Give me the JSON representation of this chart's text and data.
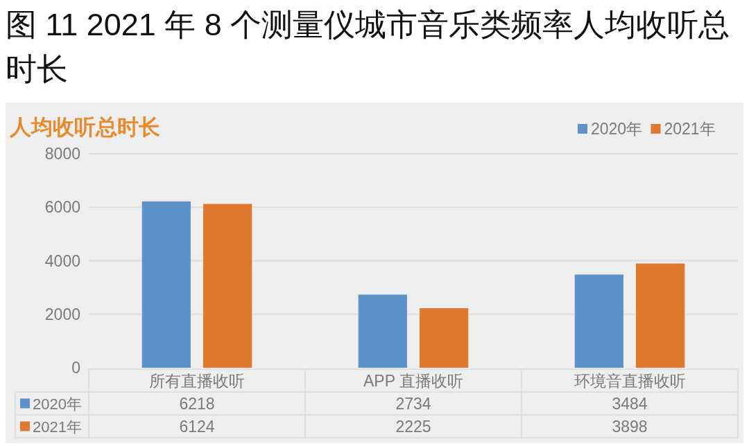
{
  "chart_data": {
    "type": "bar",
    "title": "图 11 2021 年 8 个测量仪城市音乐类频率人均收听总时长",
    "subtitle": "人均收听总时长",
    "categories": [
      "所有直播收听",
      "APP 直播收听",
      "环境音直播收听"
    ],
    "series": [
      {
        "name": "2020年",
        "color": "#5b92c9",
        "values": [
          6218,
          2734,
          3484
        ]
      },
      {
        "name": "2021年",
        "color": "#e1782f",
        "values": [
          6124,
          2225,
          3898
        ]
      }
    ],
    "ylim": [
      0,
      8000
    ],
    "yticks": [
      0,
      2000,
      4000,
      6000,
      8000
    ],
    "grid": "y",
    "legend": "top right",
    "data_labels": true
  }
}
